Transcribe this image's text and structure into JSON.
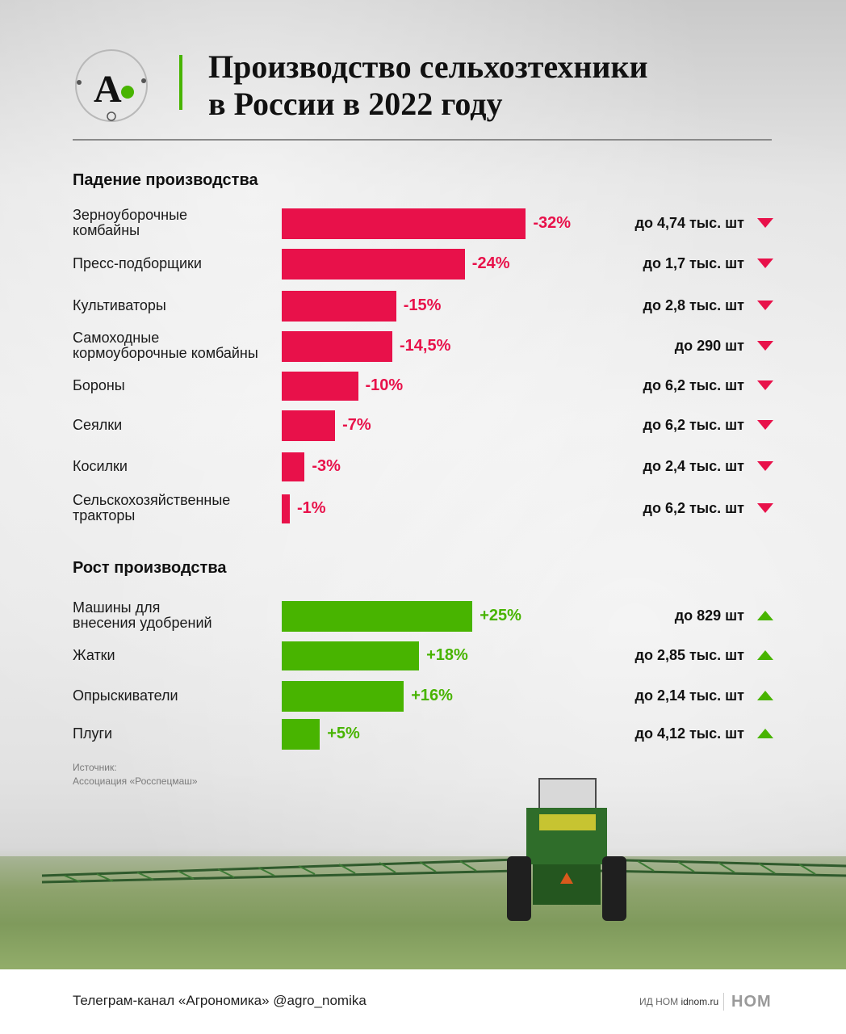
{
  "header": {
    "title_line1": "Производство сельхозтехники",
    "title_line2": "в России в 2022 году",
    "logo_letter": "А"
  },
  "colors": {
    "decline": "#e8114a",
    "growth": "#48b400"
  },
  "chart_data": [
    {
      "type": "bar",
      "orientation": "horizontal",
      "title": "Падение производства",
      "categories": [
        "Зерноуборочные\nкомбайны",
        "Пресс-подборщики",
        "Культиваторы",
        "Самоходные\nкормоуборочные комбайны",
        "Бороны",
        "Сеялки",
        "Косилки",
        "Сельскохозяйственные\nтракторы"
      ],
      "values": [
        -32,
        -24,
        -15,
        -14.5,
        -10,
        -7,
        -3,
        -1
      ],
      "value_labels": [
        "-32%",
        "-24%",
        "-15%",
        "-14,5%",
        "-10%",
        "-7%",
        "-3%",
        "-1%"
      ],
      "output_labels": [
        "до 4,74 тыс. шт",
        "до 1,7 тыс. шт",
        "до 2,8 тыс. шт",
        "до 290 шт",
        "до 6,2 тыс. шт",
        "до 6,2 тыс. шт",
        "до 2,4 тыс. шт",
        "до 6,2 тыс. шт"
      ],
      "trend": "down",
      "color": "#e8114a"
    },
    {
      "type": "bar",
      "orientation": "horizontal",
      "title": "Рост производства",
      "categories": [
        "Машины для\nвнесения удобрений",
        "Жатки",
        "Опрыскиватели",
        "Плуги"
      ],
      "values": [
        25,
        18,
        16,
        5
      ],
      "value_labels": [
        "+25%",
        "+18%",
        "+16%",
        "+5%"
      ],
      "output_labels": [
        "до 829 шт",
        "до 2,85 тыс. шт",
        "до 2,14 тыс. шт",
        "до 4,12 тыс. шт"
      ],
      "trend": "up",
      "color": "#48b400"
    }
  ],
  "source": {
    "line1": "Источник:",
    "line2": "Ассоциация «Росспецмаш»"
  },
  "footer": {
    "telegram": "Телеграм-канал «Агрономика» @agro_nomika",
    "publisher_prefix": "ИД НОМ",
    "publisher_site": "idnom.ru",
    "publisher_logo": "НОМ"
  }
}
